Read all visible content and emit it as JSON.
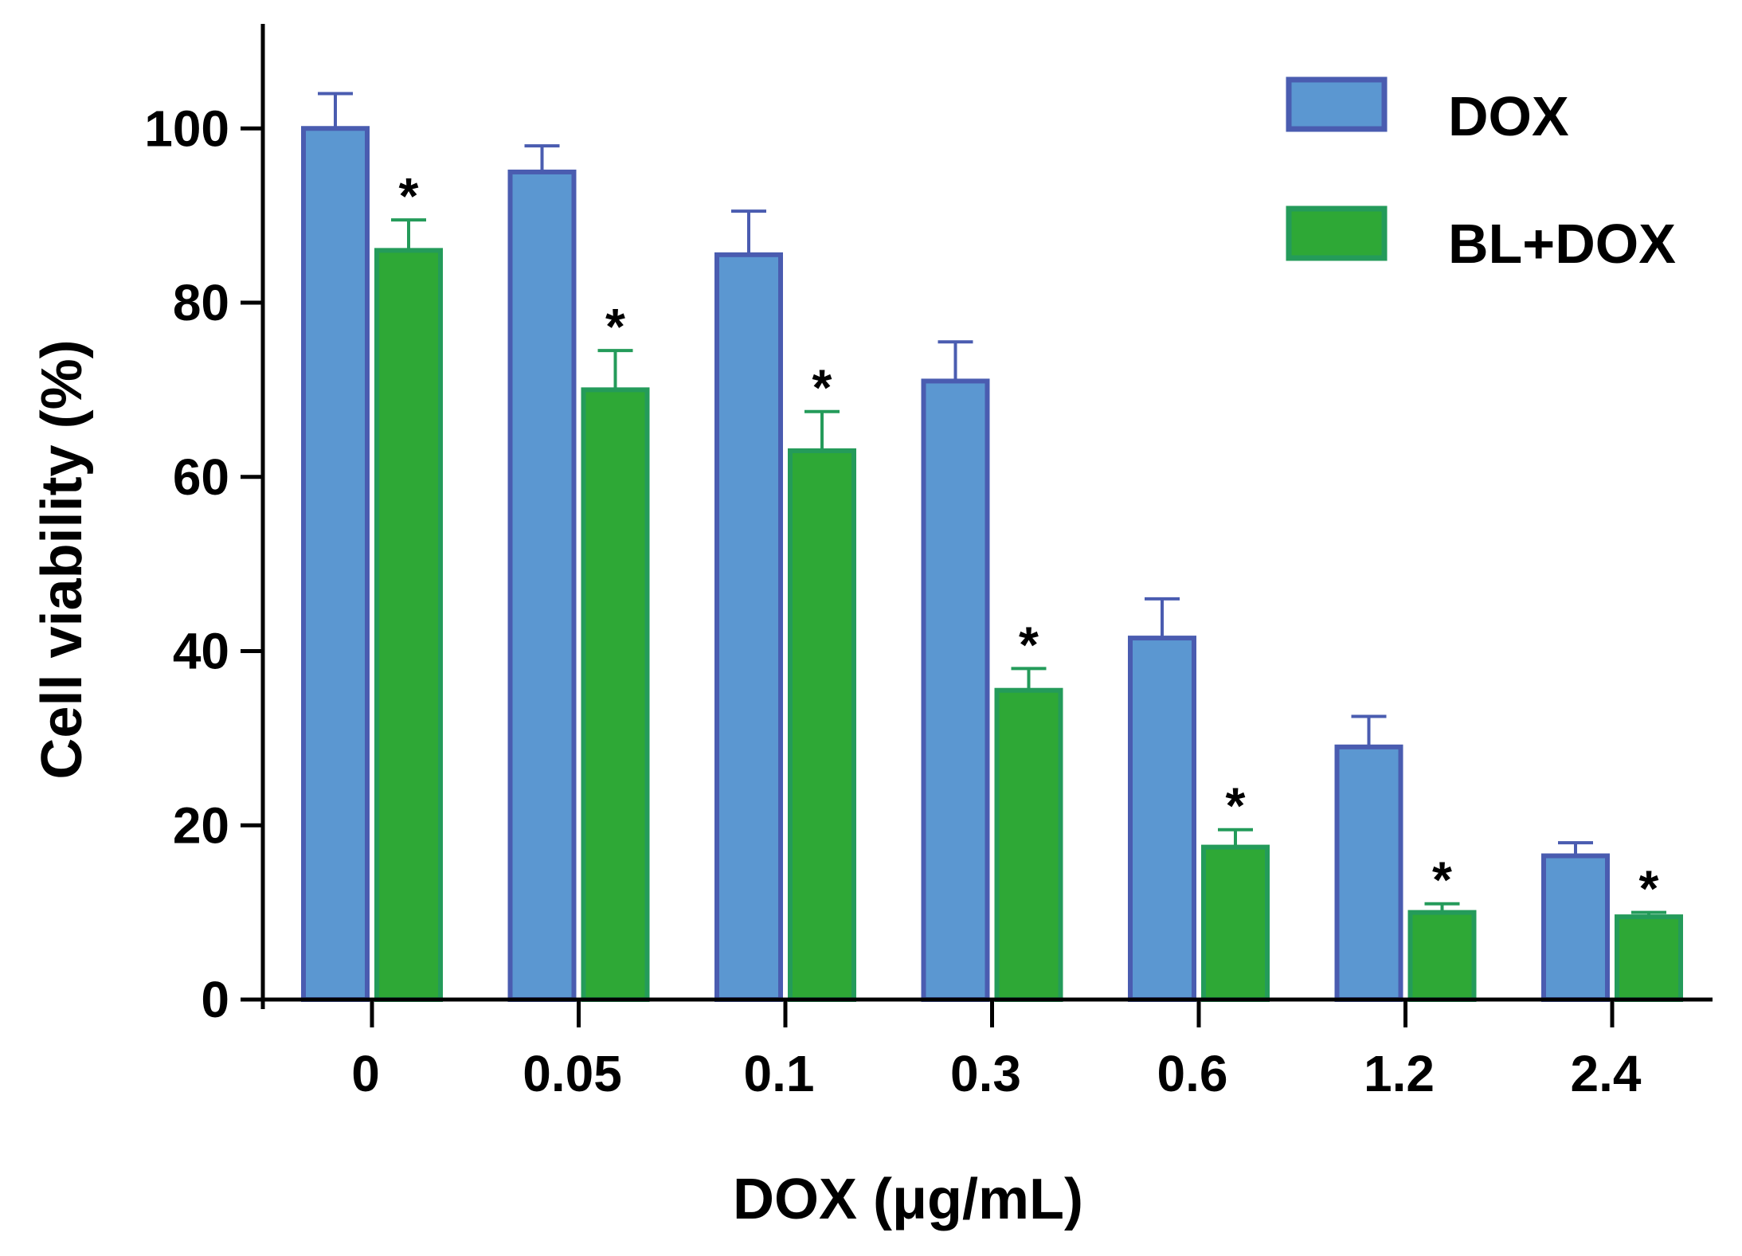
{
  "chart_data": {
    "type": "bar",
    "title": "",
    "xlabel": "DOX (μg/mL)",
    "ylabel": "Cell viability (%)",
    "ylim": [
      0,
      112
    ],
    "yticks": [
      0,
      20,
      40,
      60,
      80,
      100
    ],
    "categories": [
      "0",
      "0.05",
      "0.1",
      "0.3",
      "0.6",
      "1.2",
      "2.4"
    ],
    "series": [
      {
        "name": "DOX",
        "color": "#5b97d1",
        "border": "#4a5cb0",
        "values": [
          100,
          95,
          85.5,
          71,
          41.5,
          29,
          16.5
        ],
        "errors": [
          4,
          3,
          5,
          4.5,
          4.5,
          3.5,
          1.5
        ],
        "significance": [
          "",
          "",
          "",
          "",
          "",
          "",
          ""
        ]
      },
      {
        "name": "BL+DOX",
        "color": "#2ea836",
        "border": "#249b5a",
        "values": [
          86,
          70,
          63,
          35.5,
          17.5,
          10,
          9.5
        ],
        "errors": [
          3.5,
          4.5,
          4.5,
          2.5,
          2,
          1,
          0.5
        ],
        "significance": [
          "*",
          "*",
          "*",
          "*",
          "*",
          "*",
          "*"
        ]
      }
    ],
    "legend": "top-right"
  }
}
